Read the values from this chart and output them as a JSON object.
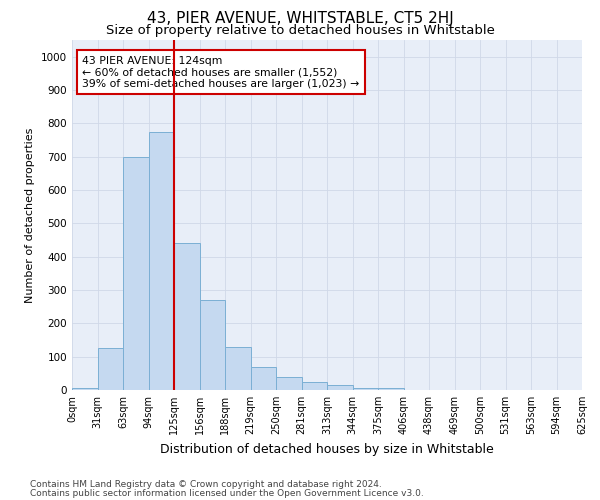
{
  "title": "43, PIER AVENUE, WHITSTABLE, CT5 2HJ",
  "subtitle": "Size of property relative to detached houses in Whitstable",
  "xlabel": "Distribution of detached houses by size in Whitstable",
  "ylabel": "Number of detached properties",
  "bin_labels": [
    "0sqm",
    "31sqm",
    "63sqm",
    "94sqm",
    "125sqm",
    "156sqm",
    "188sqm",
    "219sqm",
    "250sqm",
    "281sqm",
    "313sqm",
    "344sqm",
    "375sqm",
    "406sqm",
    "438sqm",
    "469sqm",
    "500sqm",
    "531sqm",
    "563sqm",
    "594sqm",
    "625sqm"
  ],
  "bar_values": [
    5,
    125,
    700,
    775,
    440,
    270,
    130,
    70,
    40,
    25,
    15,
    5,
    5,
    0,
    0,
    0,
    0,
    0,
    0,
    0
  ],
  "bar_color": "#c5d9f0",
  "bar_edge_color": "#7bafd4",
  "vline_x": 4.0,
  "vline_color": "#cc0000",
  "annotation_line1": "43 PIER AVENUE: 124sqm",
  "annotation_line2": "← 60% of detached houses are smaller (1,552)",
  "annotation_line3": "39% of semi-detached houses are larger (1,023) →",
  "annotation_box_color": "#ffffff",
  "annotation_box_edge": "#cc0000",
  "ylim": [
    0,
    1050
  ],
  "yticks": [
    0,
    100,
    200,
    300,
    400,
    500,
    600,
    700,
    800,
    900,
    1000
  ],
  "grid_color": "#d0d8e8",
  "footer1": "Contains HM Land Registry data © Crown copyright and database right 2024.",
  "footer2": "Contains public sector information licensed under the Open Government Licence v3.0.",
  "bg_color": "#e8eef8",
  "title_fontsize": 11,
  "subtitle_fontsize": 9.5,
  "ylabel_fontsize": 8,
  "xlabel_fontsize": 9,
  "tick_fontsize": 7,
  "footer_fontsize": 6.5
}
